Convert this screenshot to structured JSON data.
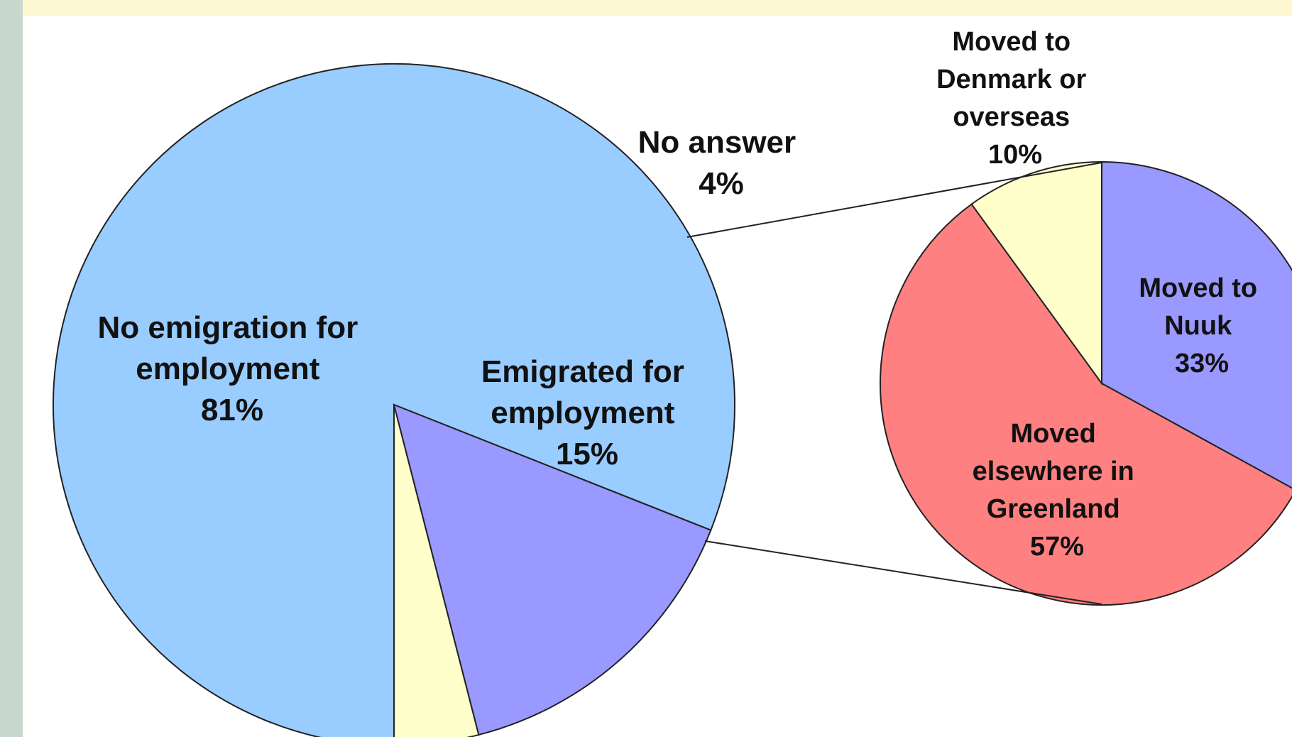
{
  "chart_data": [
    {
      "type": "pie",
      "slices": [
        {
          "label": "No emigration for employment",
          "value": 81,
          "display": "81%",
          "color": "#99ccff"
        },
        {
          "label": "No answer",
          "value": 4,
          "display": "4%",
          "color": "#ffffcc"
        },
        {
          "label": "Emigrated for employment",
          "value": 15,
          "display": "15%",
          "color": "#9999ff"
        }
      ],
      "exploded_slice": "Emigrated for employment"
    },
    {
      "type": "pie",
      "breakdown_of": "Emigrated for employment",
      "slices": [
        {
          "label": "Moved to Nuuk",
          "value": 33,
          "display": "33%",
          "color": "#9999ff"
        },
        {
          "label": "Moved elsewhere in Greenland",
          "value": 57,
          "display": "57%",
          "color": "#ff8080"
        },
        {
          "label": "Moved to Denmark or overseas",
          "value": 10,
          "display": "10%",
          "color": "#ffffcc"
        }
      ]
    }
  ],
  "labels": {
    "no_emigration": [
      "No emigration for",
      "employment",
      "81%"
    ],
    "no_answer": [
      "No answer",
      "4%"
    ],
    "emigrated": [
      "Emigrated for",
      "employment",
      "15%"
    ],
    "denmark": [
      "Moved to",
      "Denmark or",
      "overseas",
      "10%"
    ],
    "nuuk": [
      "Moved to",
      "Nuuk",
      "33%"
    ],
    "elsewhere": [
      "Moved",
      "elsewhere in",
      "Greenland",
      "57%"
    ]
  }
}
